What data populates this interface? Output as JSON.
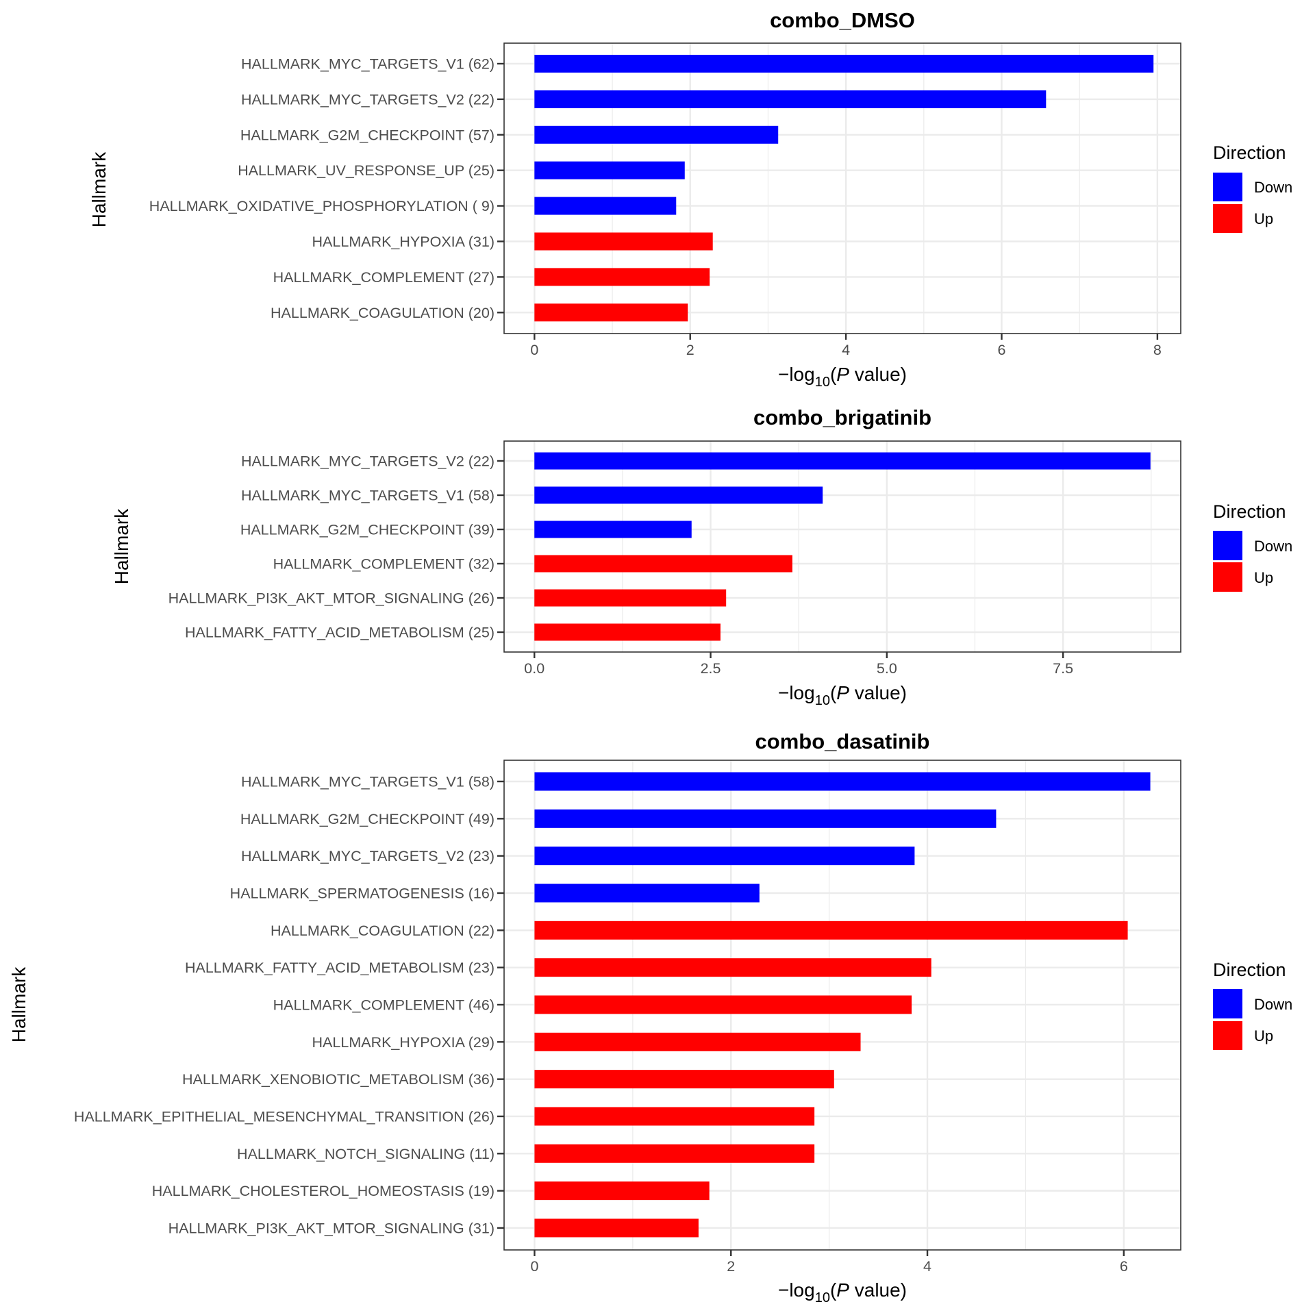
{
  "colors": {
    "Down": "#0000ff",
    "Up": "#ff0000",
    "grid": "#ebebeb",
    "border": "#333333"
  },
  "chart_data": [
    {
      "type": "bar",
      "orientation": "horizontal",
      "title": "combo_DMSO",
      "xlabel": {
        "prefix": "−log",
        "subscript": "10",
        "open": "(",
        "italic": "P",
        "suffix": " value)"
      },
      "ylabel": "Hallmark",
      "xlim": [
        -0.39,
        8.3
      ],
      "xticks": [
        0,
        2,
        4,
        6,
        8
      ],
      "tick_labels": [
        "0",
        "2",
        "4",
        "6",
        "8"
      ],
      "grid": true,
      "legend": {
        "title": "Direction",
        "position": "right",
        "entries": [
          "Down",
          "Up"
        ]
      },
      "categories": [
        "HALLMARK_MYC_TARGETS_V1 (62)",
        "HALLMARK_MYC_TARGETS_V2 (22)",
        "HALLMARK_G2M_CHECKPOINT (57)",
        "HALLMARK_UV_RESPONSE_UP (25)",
        "HALLMARK_OXIDATIVE_PHOSPHORYLATION ( 9)",
        "HALLMARK_HYPOXIA (31)",
        "HALLMARK_COMPLEMENT (27)",
        "HALLMARK_COAGULATION (20)"
      ],
      "values": [
        7.95,
        6.57,
        3.13,
        1.93,
        1.82,
        2.29,
        2.25,
        1.97
      ],
      "direction": [
        "Down",
        "Down",
        "Down",
        "Down",
        "Down",
        "Up",
        "Up",
        "Up"
      ]
    },
    {
      "type": "bar",
      "orientation": "horizontal",
      "title": "combo_brigatinib",
      "xlabel": {
        "prefix": "−log",
        "subscript": "10",
        "open": "(",
        "italic": "P",
        "suffix": " value)"
      },
      "ylabel": "Hallmark",
      "xlim": [
        -0.43,
        9.17
      ],
      "xticks": [
        0,
        2.5,
        5,
        7.5
      ],
      "tick_labels": [
        "0.0",
        "2.5",
        "5.0",
        "7.5"
      ],
      "grid": true,
      "legend": {
        "title": "Direction",
        "position": "right",
        "entries": [
          "Down",
          "Up"
        ]
      },
      "categories": [
        "HALLMARK_MYC_TARGETS_V2 (22)",
        "HALLMARK_MYC_TARGETS_V1 (58)",
        "HALLMARK_G2M_CHECKPOINT (39)",
        "HALLMARK_COMPLEMENT (32)",
        "HALLMARK_PI3K_AKT_MTOR_SIGNALING (26)",
        "HALLMARK_FATTY_ACID_METABOLISM (25)"
      ],
      "values": [
        8.74,
        4.09,
        2.23,
        3.66,
        2.72,
        2.64
      ],
      "direction": [
        "Down",
        "Down",
        "Down",
        "Up",
        "Up",
        "Up"
      ]
    },
    {
      "type": "bar",
      "orientation": "horizontal",
      "title": "combo_dasatinib",
      "xlabel": {
        "prefix": "−log",
        "subscript": "10",
        "open": "(",
        "italic": "P",
        "suffix": " value)"
      },
      "ylabel": "Hallmark",
      "xlim": [
        -0.31,
        6.58
      ],
      "xticks": [
        0,
        2,
        4,
        6
      ],
      "tick_labels": [
        "0",
        "2",
        "4",
        "6"
      ],
      "grid": true,
      "legend": {
        "title": "Direction",
        "position": "right",
        "entries": [
          "Down",
          "Up"
        ]
      },
      "categories": [
        "HALLMARK_MYC_TARGETS_V1 (58)",
        "HALLMARK_G2M_CHECKPOINT (49)",
        "HALLMARK_MYC_TARGETS_V2 (23)",
        "HALLMARK_SPERMATOGENESIS (16)",
        "HALLMARK_COAGULATION (22)",
        "HALLMARK_FATTY_ACID_METABOLISM (23)",
        "HALLMARK_COMPLEMENT (46)",
        "HALLMARK_HYPOXIA (29)",
        "HALLMARK_XENOBIOTIC_METABOLISM (36)",
        "HALLMARK_EPITHELIAL_MESENCHYMAL_TRANSITION (26)",
        "HALLMARK_NOTCH_SIGNALING (11)",
        "HALLMARK_CHOLESTEROL_HOMEOSTASIS (19)",
        "HALLMARK_PI3K_AKT_MTOR_SIGNALING (31)"
      ],
      "values": [
        6.27,
        4.7,
        3.87,
        2.29,
        6.04,
        4.04,
        3.84,
        3.32,
        3.05,
        2.85,
        2.85,
        1.78,
        1.67
      ],
      "direction": [
        "Down",
        "Down",
        "Down",
        "Down",
        "Up",
        "Up",
        "Up",
        "Up",
        "Up",
        "Up",
        "Up",
        "Up",
        "Up"
      ]
    }
  ]
}
